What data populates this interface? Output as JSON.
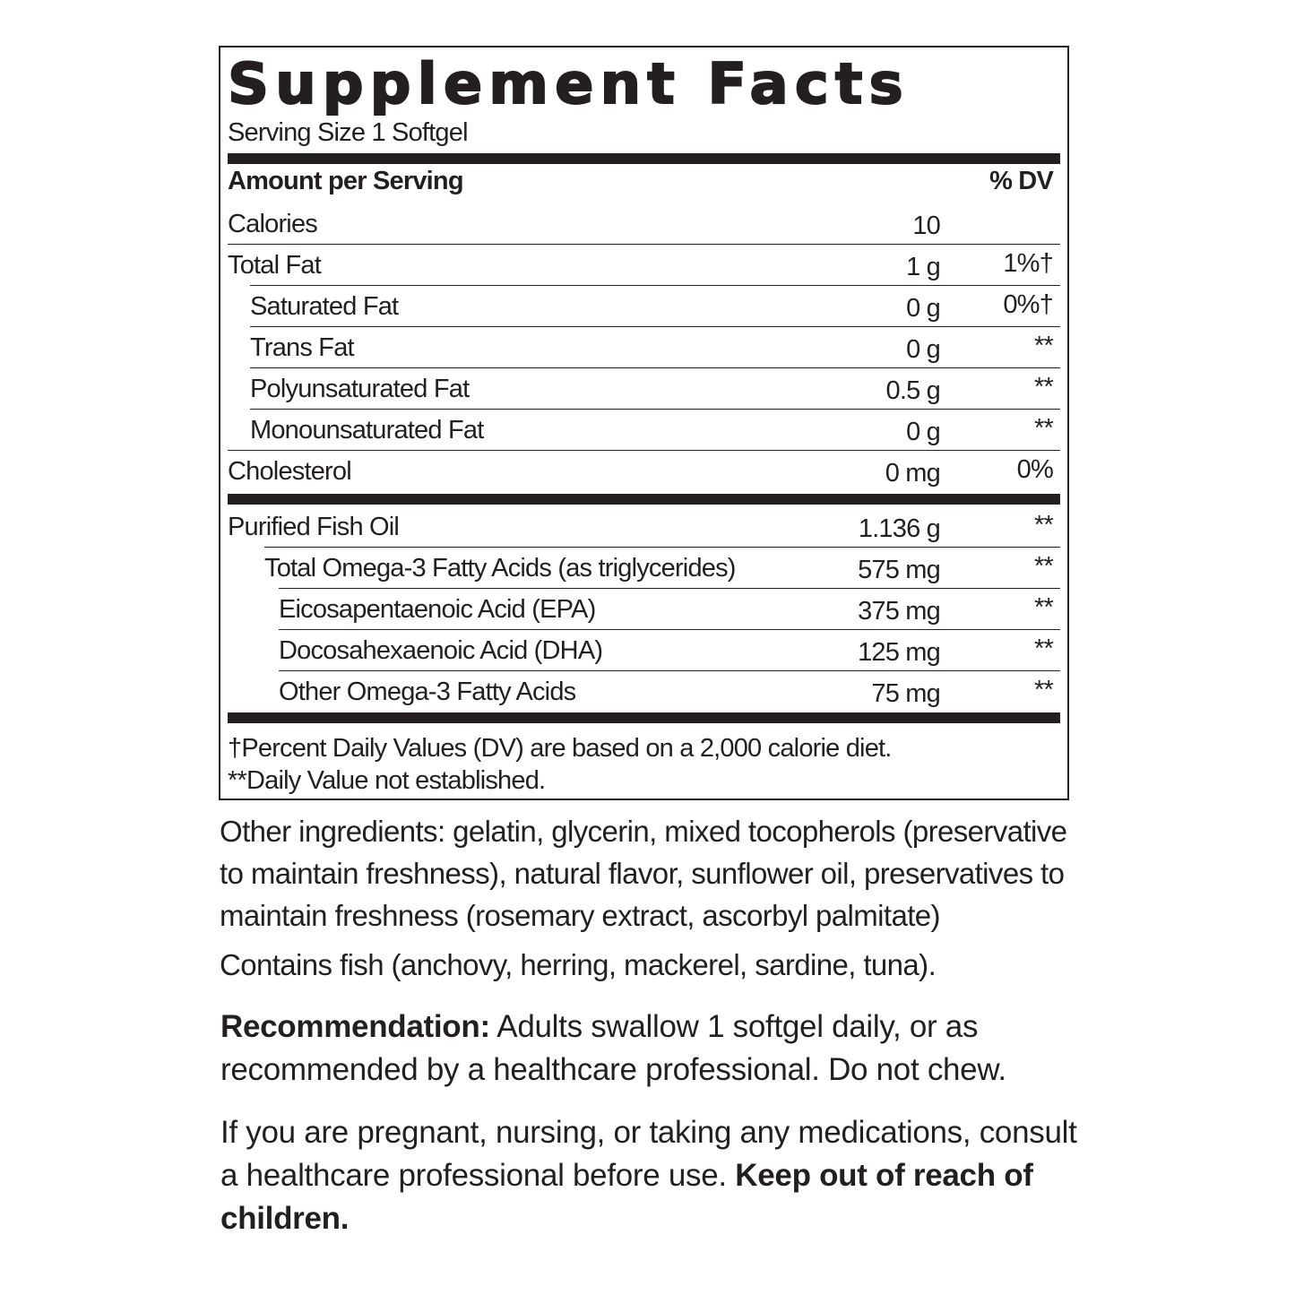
{
  "title": "Supplement Facts",
  "serving_size": "Serving Size 1 Softgel",
  "header": {
    "amount": "Amount per Serving",
    "dv": "% DV"
  },
  "rows_top": [
    {
      "label": "Calories",
      "amount": "10",
      "dv": "",
      "indent": 0
    },
    {
      "label": "Total Fat",
      "amount": "1 g",
      "dv": "1%†",
      "indent": 0
    },
    {
      "label": "Saturated Fat",
      "amount": "0 g",
      "dv": "0%†",
      "indent": 1
    },
    {
      "label": "Trans Fat",
      "amount": "0 g",
      "dv": "**",
      "indent": 1
    },
    {
      "label": "Polyunsaturated Fat",
      "amount": "0.5 g",
      "dv": "**",
      "indent": 1
    },
    {
      "label": "Monounsaturated Fat",
      "amount": "0 g",
      "dv": "**",
      "indent": 1
    },
    {
      "label": "Cholesterol",
      "amount": "0 mg",
      "dv": "0%",
      "indent": 0
    }
  ],
  "rows_bottom": [
    {
      "label": "Purified Fish Oil",
      "amount": "1.136 g",
      "dv": "**",
      "indent": 0
    },
    {
      "label": "Total Omega-3 Fatty Acids (as triglycerides)",
      "amount": "575 mg",
      "dv": "**",
      "indent": 2
    },
    {
      "label": "Eicosapentaenoic Acid (EPA)",
      "amount": "375 mg",
      "dv": "**",
      "indent": 3
    },
    {
      "label": "Docosahexaenoic Acid (DHA)",
      "amount": "125 mg",
      "dv": "**",
      "indent": 3
    },
    {
      "label": "Other Omega-3 Fatty Acids",
      "amount": "75 mg",
      "dv": "**",
      "indent": 3
    }
  ],
  "footnotes": [
    "†Percent Daily Values (DV) are based on a 2,000 calorie diet.",
    "**Daily Value not established."
  ],
  "other_ingredients": "Other ingredients: gelatin, glycerin, mixed tocopherols (preservative to maintain freshness), natural flavor, sunflower oil, preservatives to maintain freshness (rosemary extract, ascorbyl palmitate)",
  "allergen": "Contains fish (anchovy, herring, mackerel, sardine, tuna).",
  "recommendation": {
    "label": "Recommendation:",
    "text": " Adults swallow 1 softgel daily, or as recommended by a healthcare professional. Do not chew."
  },
  "warning": {
    "text": "If you are pregnant, nursing, or taking any medications, consult a healthcare professional before use. ",
    "bold": "Keep out of reach of children."
  }
}
